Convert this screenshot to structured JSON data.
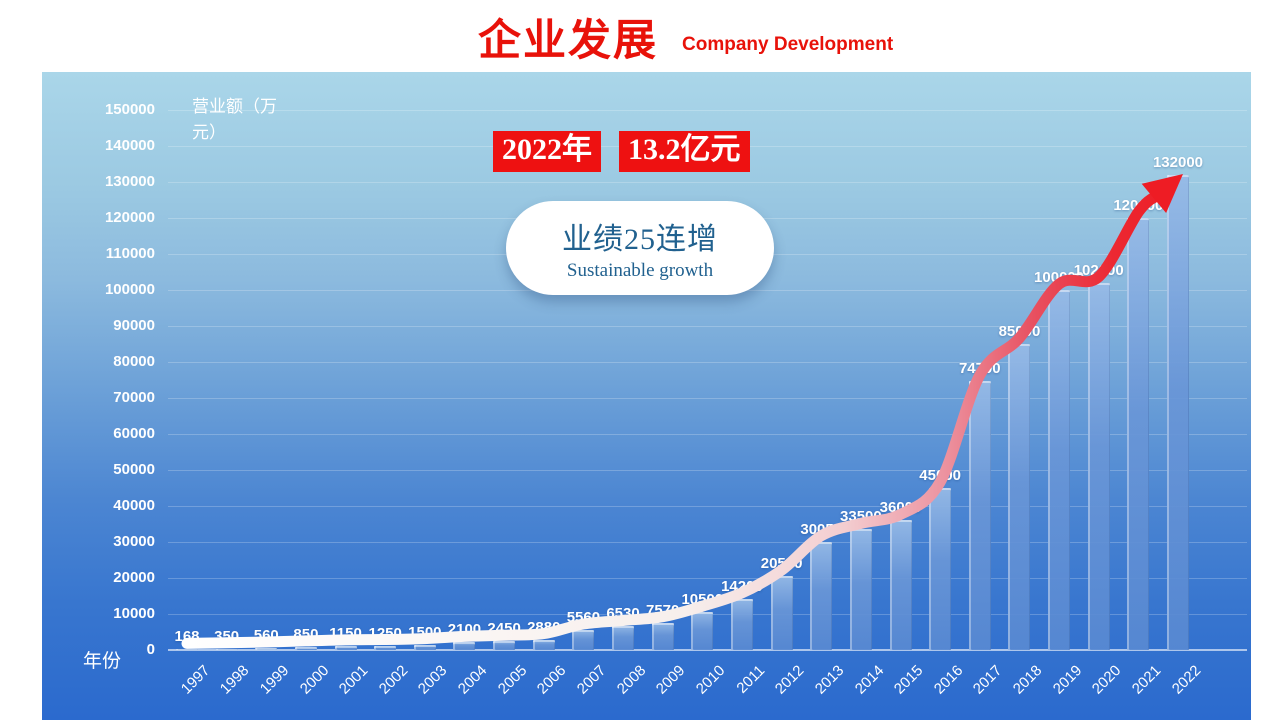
{
  "header": {
    "title": "企业发展",
    "subtitle": "Company Development"
  },
  "badge": {
    "year": "2022年",
    "amount": "13.2亿元"
  },
  "bubble": {
    "line1": "业绩25连增",
    "line2": "Sustainable growth"
  },
  "axes": {
    "y_title": "营业额（万元）",
    "x_title": "年份"
  },
  "colors": {
    "title_red": "#e8120a",
    "badge_bg": "#ee1111",
    "arrow_red": "#ee1c24",
    "bubble_text": "#21618f",
    "panel_top": "#aad6e9",
    "panel_bottom": "#2b6ace",
    "bar_blue": "#5b8ad2",
    "label_white": "#ffffff"
  },
  "chart_data": {
    "type": "bar",
    "title": "企业发展 Company Development",
    "xlabel": "年份",
    "ylabel": "营业额（万元）",
    "categories": [
      "1997",
      "1998",
      "1999",
      "2000",
      "2001",
      "2002",
      "2003",
      "2004",
      "2005",
      "2006",
      "2007",
      "2008",
      "2009",
      "2010",
      "2011",
      "2012",
      "2013",
      "2014",
      "2015",
      "2016",
      "2017",
      "2018",
      "2019",
      "2020",
      "2021",
      "2022"
    ],
    "values": [
      168,
      350,
      560,
      850,
      1150,
      1250,
      1500,
      2100,
      2450,
      2880,
      5560,
      6530,
      7570,
      10500,
      14200,
      20500,
      30050,
      33500,
      36000,
      45000,
      74700,
      85000,
      100000,
      102000,
      120000,
      132000
    ],
    "ylim": [
      0,
      150000
    ],
    "ytick_step": 10000,
    "yticks": [
      0,
      10000,
      20000,
      30000,
      40000,
      50000,
      60000,
      70000,
      80000,
      90000,
      100000,
      110000,
      120000,
      130000,
      140000,
      150000
    ],
    "grid": true,
    "legend": "none",
    "overlay": "white-to-red growth arrow following bar tops, arrowhead at 2022"
  }
}
